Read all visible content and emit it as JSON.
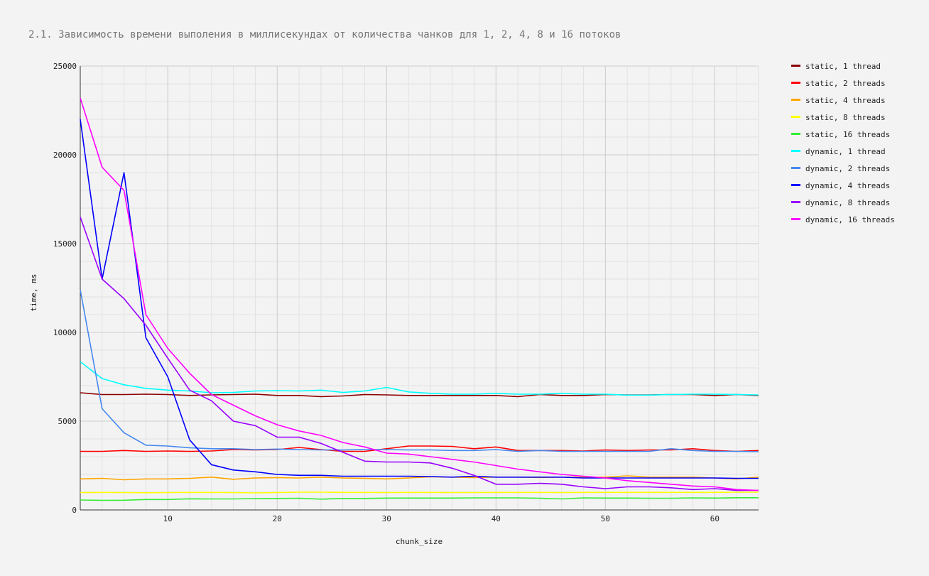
{
  "chart_data": {
    "type": "line",
    "title": "2.1. Зависимость времени выполения в миллисекундах от количества чанков для 1, 2, 4, 8 и 16 потоков",
    "xlabel": "chunk_size",
    "ylabel": "time, ms",
    "xlim": [
      2,
      64
    ],
    "ylim": [
      0,
      25000
    ],
    "x_ticks": [
      10,
      20,
      30,
      40,
      50,
      60
    ],
    "y_ticks": [
      0,
      5000,
      10000,
      15000,
      20000,
      25000
    ],
    "grid": true,
    "legend_position": "right",
    "x": [
      2,
      4,
      6,
      8,
      10,
      12,
      14,
      16,
      18,
      20,
      22,
      24,
      26,
      28,
      30,
      32,
      34,
      36,
      38,
      40,
      42,
      44,
      46,
      48,
      50,
      52,
      54,
      56,
      58,
      60,
      62,
      64
    ],
    "series": [
      {
        "name": "static, 1 thread",
        "color": "#8b0000",
        "values": [
          6600,
          6500,
          6500,
          6520,
          6500,
          6450,
          6480,
          6500,
          6520,
          6450,
          6450,
          6380,
          6420,
          6500,
          6480,
          6450,
          6450,
          6450,
          6450,
          6450,
          6380,
          6500,
          6450,
          6450,
          6500,
          6480,
          6480,
          6500,
          6500,
          6450,
          6500,
          6450
        ]
      },
      {
        "name": "static, 2 threads",
        "color": "#ff0000",
        "values": [
          3300,
          3300,
          3350,
          3300,
          3320,
          3300,
          3320,
          3400,
          3380,
          3400,
          3520,
          3400,
          3300,
          3300,
          3450,
          3600,
          3600,
          3580,
          3450,
          3550,
          3350,
          3350,
          3350,
          3320,
          3380,
          3350,
          3380,
          3380,
          3450,
          3350,
          3300,
          3350
        ]
      },
      {
        "name": "static, 4 threads",
        "color": "#ffa500",
        "values": [
          1750,
          1780,
          1700,
          1750,
          1750,
          1780,
          1850,
          1730,
          1800,
          1820,
          1800,
          1850,
          1800,
          1780,
          1750,
          1800,
          1870,
          1850,
          1820,
          1850,
          1850,
          1830,
          1850,
          1850,
          1850,
          1920,
          1850,
          1850,
          1850,
          1800,
          1750,
          1850
        ]
      },
      {
        "name": "static, 8 threads",
        "color": "#ffff00",
        "values": [
          980,
          990,
          980,
          970,
          980,
          990,
          990,
          980,
          960,
          980,
          1000,
          1000,
          990,
          990,
          980,
          990,
          990,
          980,
          980,
          990,
          990,
          990,
          980,
          990,
          990,
          990,
          990,
          990,
          990,
          990,
          1000,
          1000
        ]
      },
      {
        "name": "static, 16 threads",
        "color": "#33ee33",
        "values": [
          560,
          540,
          550,
          590,
          590,
          630,
          620,
          620,
          640,
          650,
          660,
          610,
          650,
          650,
          670,
          670,
          670,
          670,
          680,
          680,
          680,
          660,
          620,
          680,
          670,
          670,
          660,
          660,
          680,
          670,
          690,
          690
        ]
      },
      {
        "name": "dynamic, 1 thread",
        "color": "#00ffff",
        "values": [
          8350,
          7400,
          7050,
          6850,
          6750,
          6700,
          6600,
          6620,
          6700,
          6720,
          6700,
          6750,
          6620,
          6700,
          6900,
          6650,
          6570,
          6520,
          6520,
          6570,
          6520,
          6520,
          6570,
          6520,
          6520,
          6470,
          6470,
          6500,
          6520,
          6520,
          6500,
          6480
        ]
      },
      {
        "name": "dynamic, 2 threads",
        "color": "#4488ee",
        "values": [
          12400,
          5700,
          4350,
          3650,
          3600,
          3500,
          3450,
          3450,
          3400,
          3430,
          3400,
          3380,
          3380,
          3400,
          3400,
          3380,
          3380,
          3350,
          3350,
          3400,
          3300,
          3350,
          3300,
          3300,
          3300,
          3300,
          3300,
          3450,
          3350,
          3300,
          3300,
          3280
        ]
      },
      {
        "name": "dynamic, 4 threads",
        "color": "#0000ff",
        "values": [
          22000,
          13000,
          19000,
          9700,
          7500,
          3950,
          2550,
          2250,
          2150,
          2000,
          1950,
          1950,
          1900,
          1900,
          1900,
          1900,
          1880,
          1850,
          1900,
          1850,
          1850,
          1850,
          1850,
          1800,
          1800,
          1800,
          1800,
          1800,
          1800,
          1800,
          1780,
          1780
        ]
      },
      {
        "name": "dynamic, 8 threads",
        "color": "#9900ff",
        "values": [
          16500,
          13000,
          11900,
          10400,
          8550,
          6750,
          6150,
          5000,
          4750,
          4100,
          4100,
          3750,
          3250,
          2750,
          2700,
          2700,
          2650,
          2350,
          1950,
          1450,
          1450,
          1500,
          1450,
          1300,
          1200,
          1300,
          1300,
          1250,
          1150,
          1200,
          1100,
          1100
        ]
      },
      {
        "name": "dynamic, 16 threads",
        "color": "#ff00ff",
        "values": [
          23200,
          19300,
          18000,
          11000,
          9100,
          7700,
          6500,
          5900,
          5300,
          4800,
          4450,
          4200,
          3800,
          3550,
          3200,
          3150,
          3000,
          2850,
          2700,
          2500,
          2300,
          2150,
          2000,
          1900,
          1800,
          1650,
          1550,
          1450,
          1350,
          1300,
          1150,
          1100
        ]
      }
    ]
  }
}
